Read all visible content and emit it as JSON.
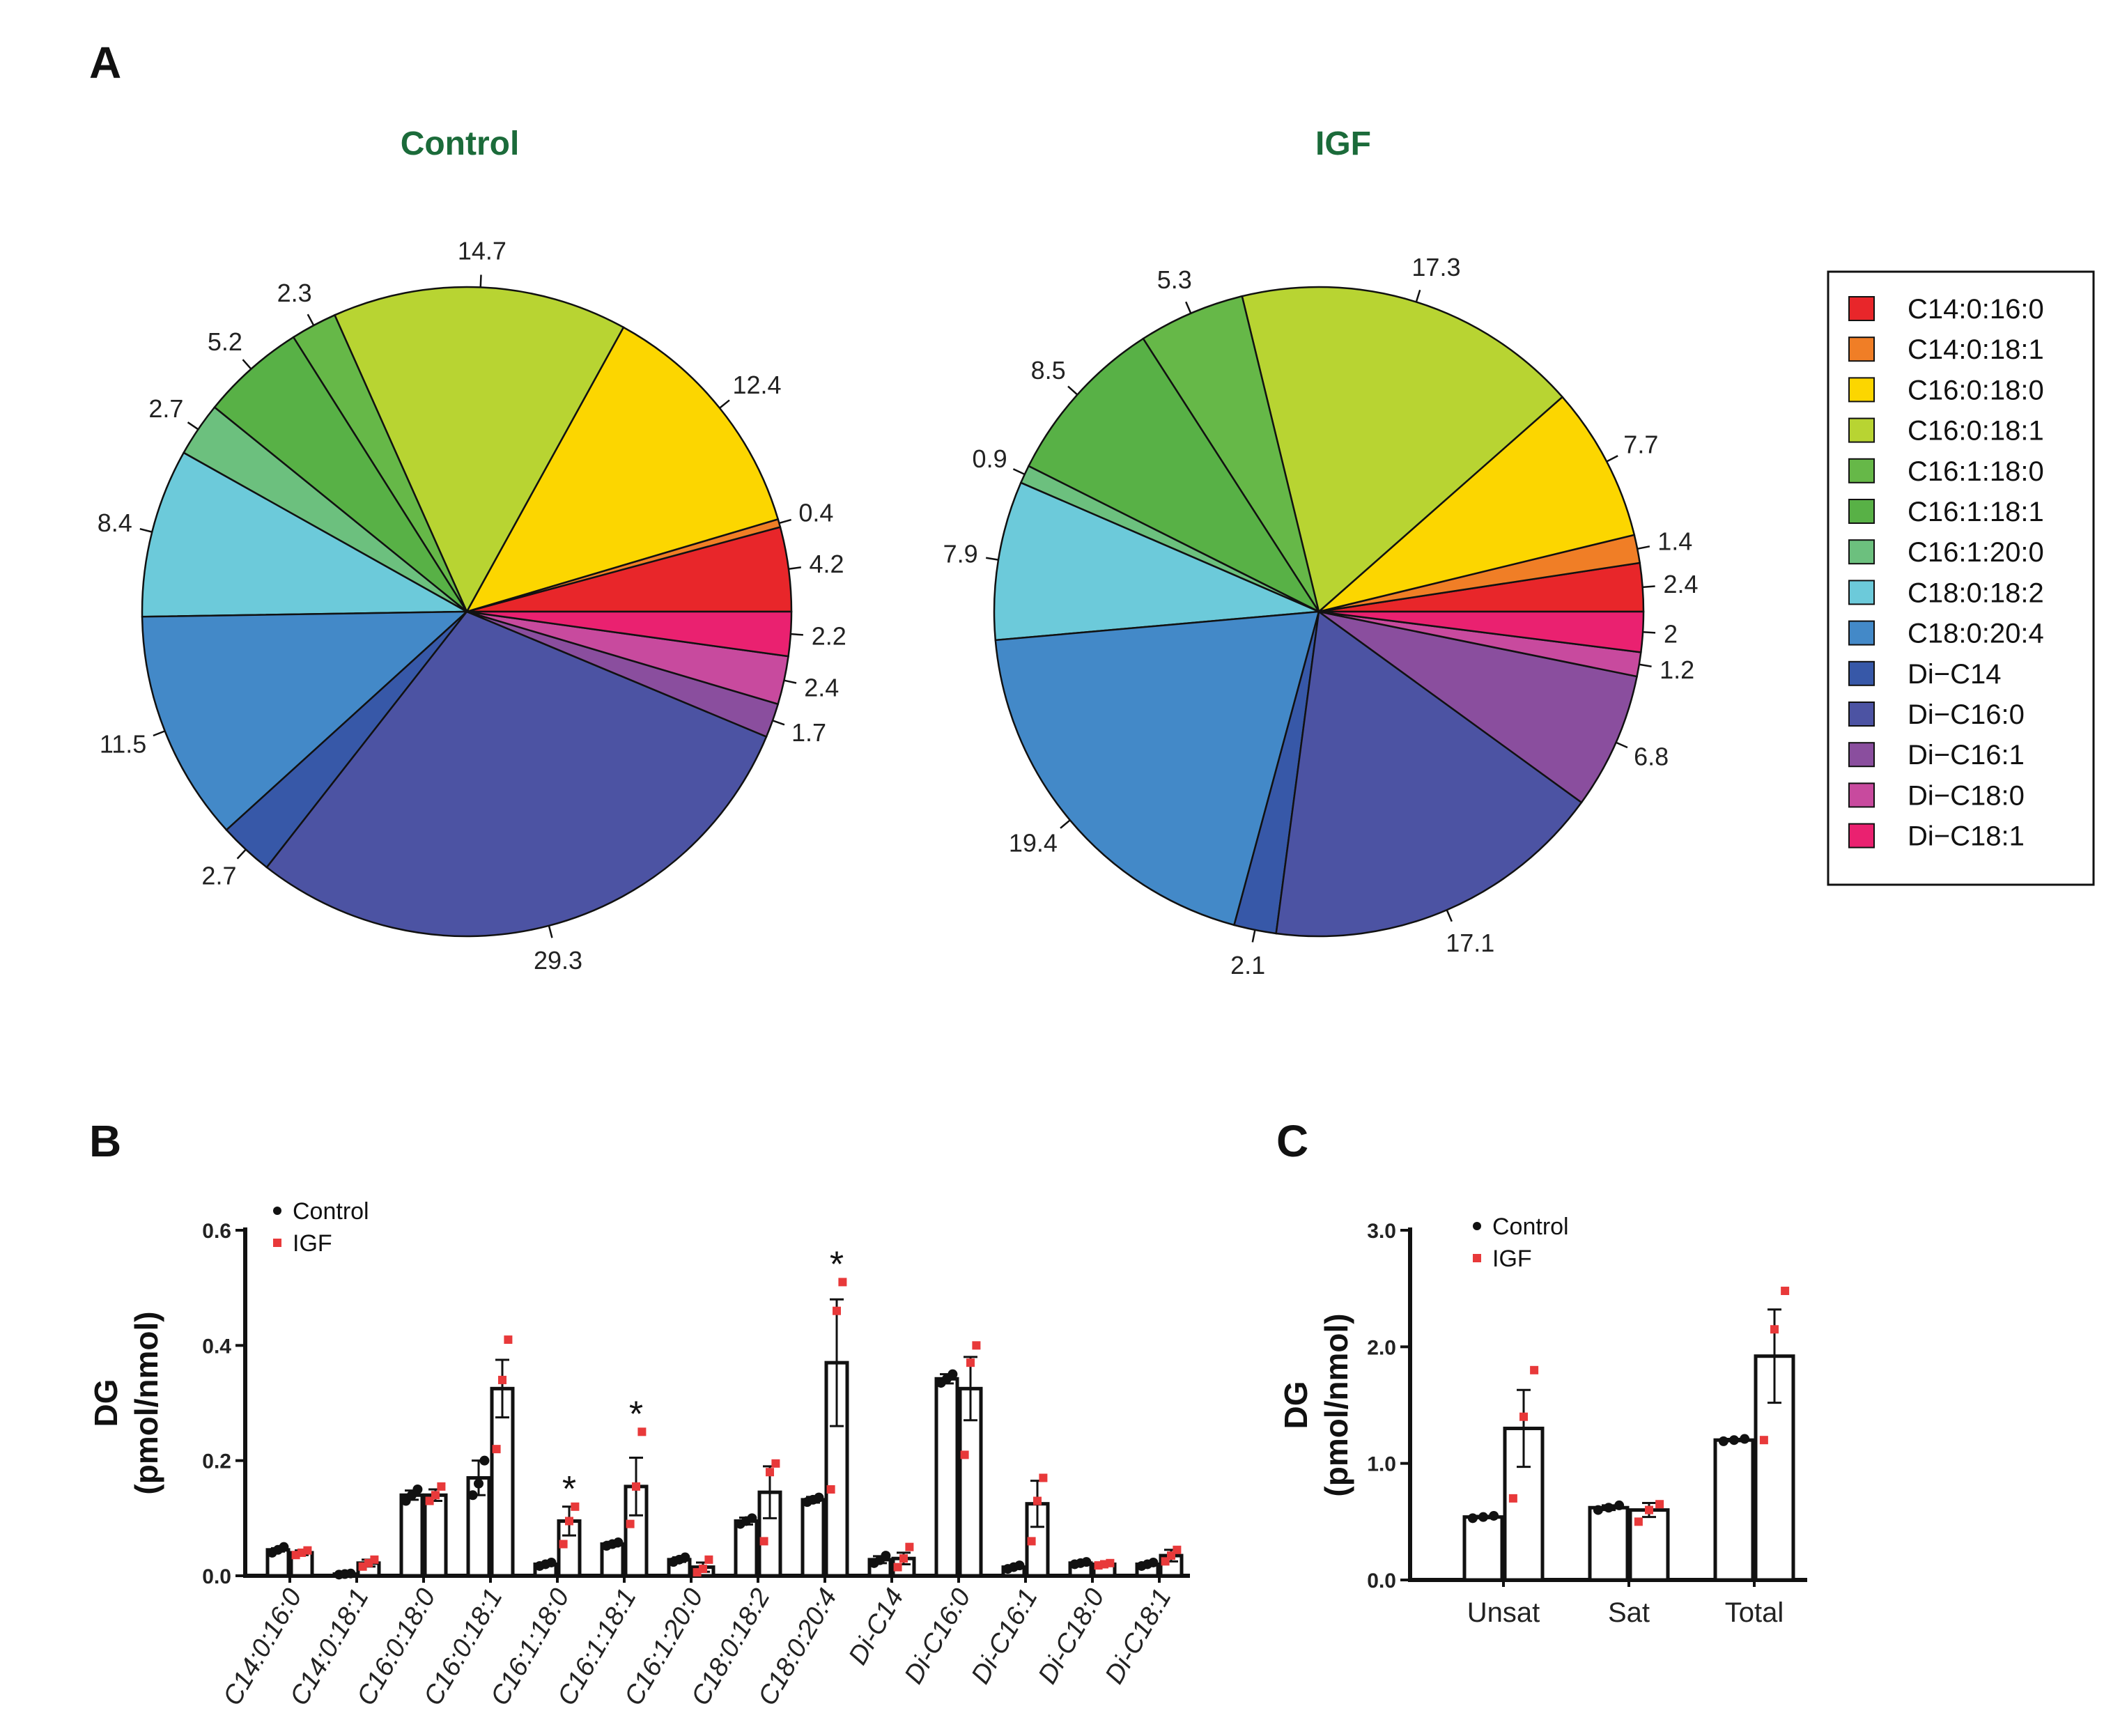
{
  "colors": {
    "C14:0:16:0": "#e8262a",
    "C14:0:18:1": "#f07e26",
    "C16:0:18:0": "#fcd600",
    "C16:0:18:1": "#b8d432",
    "C16:1:18:0": "#66b848",
    "C16:1:18:1": "#58b146",
    "C16:1:20:0": "#6cc07e",
    "C18:0:18:2": "#6ccada",
    "C18:0:20:4": "#4389c8",
    "Di-C14": "#3758a8",
    "Di-C16:0": "#4c53a3",
    "Di-C16:1": "#8a4e9e",
    "Di-C18:0": "#c84a9e",
    "Di-C18:1": "#ea2170",
    "control_point": "#111111",
    "igf_point": "#e8393a",
    "title_green": "#1b6b3a"
  },
  "panels": {
    "A": "A",
    "B": "B",
    "C": "C"
  },
  "chart_data": [
    {
      "type": "pie",
      "panel": "A",
      "title": "Control",
      "slices": [
        {
          "label": "C14:0:16:0",
          "value": 4.2
        },
        {
          "label": "C14:0:18:1",
          "value": 0.4
        },
        {
          "label": "C16:0:18:0",
          "value": 12.4
        },
        {
          "label": "C16:0:18:1",
          "value": 14.7
        },
        {
          "label": "C16:1:18:0",
          "value": 2.3
        },
        {
          "label": "C16:1:18:1",
          "value": 5.2
        },
        {
          "label": "C16:1:20:0",
          "value": 2.7
        },
        {
          "label": "C18:0:18:2",
          "value": 8.4
        },
        {
          "label": "C18:0:20:4",
          "value": 11.5
        },
        {
          "label": "Di-C14",
          "value": 2.7
        },
        {
          "label": "Di-C16:0",
          "value": 29.3
        },
        {
          "label": "Di-C16:1",
          "value": 1.7
        },
        {
          "label": "Di-C18:0",
          "value": 2.4
        },
        {
          "label": "Di-C18:1",
          "value": 2.2
        }
      ]
    },
    {
      "type": "pie",
      "panel": "A",
      "title": "IGF",
      "slices": [
        {
          "label": "C14:0:16:0",
          "value": 2.4
        },
        {
          "label": "C14:0:18:1",
          "value": 1.4
        },
        {
          "label": "C16:0:18:0",
          "value": 7.7
        },
        {
          "label": "C16:0:18:1",
          "value": 17.3
        },
        {
          "label": "C16:1:18:0",
          "value": 5.3
        },
        {
          "label": "C16:1:18:1",
          "value": 8.5
        },
        {
          "label": "C16:1:20:0",
          "value": 0.9
        },
        {
          "label": "C18:0:18:2",
          "value": 7.9
        },
        {
          "label": "C18:0:20:4",
          "value": 19.4
        },
        {
          "label": "Di-C14",
          "value": 2.1
        },
        {
          "label": "Di-C16:0",
          "value": 17.1
        },
        {
          "label": "Di-C16:1",
          "value": 6.8
        },
        {
          "label": "Di-C18:0",
          "value": 1.2
        },
        {
          "label": "Di-C18:1",
          "value": 2
        }
      ]
    },
    {
      "type": "bar",
      "panel": "B",
      "ylabel": "DG",
      "ylabel2": "(pmol/nmol)",
      "ylim": [
        0,
        0.6
      ],
      "yticks": [
        "0.0",
        "0.2",
        "0.4",
        "0.6"
      ],
      "legend": [
        "Control",
        "IGF"
      ],
      "categories": [
        "C14:0:16:0",
        "C14:0:18:1",
        "C16:0:18:0",
        "C16:0:18:1",
        "C16:1:18:0",
        "C16:1:18:1",
        "C16:1:20:0",
        "C18:0:18:2",
        "C18:0:20:4",
        "Di-C14",
        "Di-C16:0",
        "Di-C16:1",
        "Di-C18:0",
        "Di-C18:1"
      ],
      "series": [
        {
          "name": "Control",
          "values": [
            0.045,
            0.003,
            0.14,
            0.17,
            0.02,
            0.055,
            0.028,
            0.095,
            0.132,
            0.028,
            0.342,
            0.015,
            0.022,
            0.02
          ],
          "errors": [
            0.003,
            0.001,
            0.008,
            0.03,
            0.003,
            0.004,
            0.004,
            0.006,
            0.005,
            0.006,
            0.008,
            0.003,
            0.002,
            0.003
          ],
          "points": [
            [
              0.04,
              0.045,
              0.05
            ],
            [
              0.002,
              0.003,
              0.004
            ],
            [
              0.13,
              0.14,
              0.15
            ],
            [
              0.14,
              0.16,
              0.2
            ],
            [
              0.017,
              0.02,
              0.023
            ],
            [
              0.052,
              0.055,
              0.058
            ],
            [
              0.024,
              0.028,
              0.032
            ],
            [
              0.09,
              0.095,
              0.1
            ],
            [
              0.128,
              0.132,
              0.136
            ],
            [
              0.022,
              0.027,
              0.035
            ],
            [
              0.335,
              0.342,
              0.35
            ],
            [
              0.012,
              0.015,
              0.018
            ],
            [
              0.02,
              0.022,
              0.024
            ],
            [
              0.017,
              0.02,
              0.023
            ]
          ]
        },
        {
          "name": "IGF",
          "values": [
            0.04,
            0.022,
            0.14,
            0.325,
            0.095,
            0.155,
            0.015,
            0.145,
            0.37,
            0.03,
            0.325,
            0.125,
            0.02,
            0.035
          ],
          "errors": [
            0.004,
            0.006,
            0.01,
            0.05,
            0.025,
            0.05,
            0.008,
            0.045,
            0.11,
            0.01,
            0.055,
            0.04,
            0.002,
            0.01
          ],
          "points": [
            [
              0.036,
              0.04,
              0.044
            ],
            [
              0.016,
              0.022,
              0.028
            ],
            [
              0.13,
              0.14,
              0.155
            ],
            [
              0.22,
              0.34,
              0.41
            ],
            [
              0.055,
              0.095,
              0.12
            ],
            [
              0.09,
              0.155,
              0.25
            ],
            [
              0.006,
              0.012,
              0.028
            ],
            [
              0.06,
              0.18,
              0.195
            ],
            [
              0.15,
              0.46,
              0.51
            ],
            [
              0.015,
              0.03,
              0.05
            ],
            [
              0.21,
              0.37,
              0.4
            ],
            [
              0.06,
              0.13,
              0.17
            ],
            [
              0.018,
              0.02,
              0.022
            ],
            [
              0.025,
              0.035,
              0.045
            ]
          ]
        }
      ],
      "significance": [
        "",
        "",
        "",
        "",
        "*",
        "*",
        "",
        "",
        "*",
        "",
        "",
        "",
        "",
        ""
      ]
    },
    {
      "type": "bar",
      "panel": "C",
      "ylabel": "DG",
      "ylabel2": "(pmol/nmol)",
      "ylim": [
        0,
        3.0
      ],
      "yticks": [
        "0.0",
        "1.0",
        "2.0",
        "3.0"
      ],
      "legend": [
        "Control",
        "IGF"
      ],
      "categories": [
        "Unsat",
        "Sat",
        "Total"
      ],
      "series": [
        {
          "name": "Control",
          "values": [
            0.54,
            0.62,
            1.2
          ],
          "errors": [
            0.01,
            0.02,
            0.01
          ],
          "points": [
            [
              0.53,
              0.54,
              0.55
            ],
            [
              0.6,
              0.62,
              0.64
            ],
            [
              1.19,
              1.2,
              1.21
            ]
          ]
        },
        {
          "name": "IGF",
          "values": [
            1.3,
            0.6,
            1.92
          ],
          "errors": [
            0.33,
            0.06,
            0.4
          ],
          "points": [
            [
              0.7,
              1.4,
              1.8
            ],
            [
              0.5,
              0.6,
              0.65
            ],
            [
              1.2,
              2.15,
              2.48
            ]
          ]
        }
      ]
    }
  ]
}
